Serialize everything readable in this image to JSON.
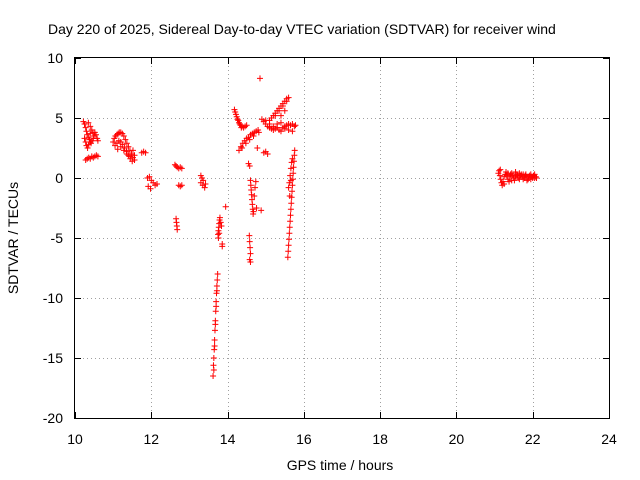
{
  "chart_data": {
    "type": "scatter",
    "title": "Day 220 of 2025, Sidereal Day-to-day VTEC variation (SDTVAR) for receiver wind",
    "xlabel": "GPS time / hours",
    "ylabel": "SDTVAR / TECUs",
    "xlim": [
      10,
      24
    ],
    "ylim": [
      -20,
      10
    ],
    "x_ticks": [
      10,
      12,
      14,
      16,
      18,
      20,
      22,
      24
    ],
    "y_ticks": [
      -20,
      -15,
      -10,
      -5,
      0,
      5,
      10
    ],
    "x_tick_labels": [
      "10",
      "12",
      "14",
      "16",
      "18",
      "20",
      "22",
      "24"
    ],
    "y_tick_labels": [
      "-20",
      "-15",
      "-10",
      "-5",
      "0",
      "5",
      "10"
    ],
    "grid": true,
    "marker": "plus",
    "series": [
      {
        "name": "SDTVAR",
        "color": "#ff0000",
        "points": [
          [
            10.22,
            4.7
          ],
          [
            10.25,
            4.5
          ],
          [
            10.28,
            4.2
          ],
          [
            10.3,
            3.9
          ],
          [
            10.32,
            3.6
          ],
          [
            10.35,
            3.4
          ],
          [
            10.38,
            3.2
          ],
          [
            10.4,
            3.0
          ],
          [
            10.42,
            2.9
          ],
          [
            10.45,
            3.1
          ],
          [
            10.48,
            3.3
          ],
          [
            10.5,
            3.5
          ],
          [
            10.52,
            3.8
          ],
          [
            10.55,
            3.6
          ],
          [
            10.58,
            3.3
          ],
          [
            10.6,
            3.1
          ],
          [
            10.25,
            3.3
          ],
          [
            10.28,
            3.0
          ],
          [
            10.3,
            2.7
          ],
          [
            10.33,
            2.5
          ],
          [
            10.36,
            2.8
          ],
          [
            10.4,
            3.7
          ],
          [
            10.44,
            4.0
          ],
          [
            10.47,
            3.8
          ],
          [
            10.35,
            4.6
          ],
          [
            10.4,
            4.3
          ],
          [
            10.28,
            1.5
          ],
          [
            10.32,
            1.6
          ],
          [
            10.36,
            1.7
          ],
          [
            10.4,
            1.6
          ],
          [
            10.44,
            1.8
          ],
          [
            10.48,
            1.7
          ],
          [
            10.52,
            1.8
          ],
          [
            10.56,
            1.9
          ],
          [
            10.6,
            1.8
          ],
          [
            11.0,
            3.0
          ],
          [
            11.03,
            3.3
          ],
          [
            11.06,
            3.5
          ],
          [
            11.1,
            3.6
          ],
          [
            11.13,
            3.7
          ],
          [
            11.16,
            3.8
          ],
          [
            11.2,
            3.8
          ],
          [
            11.24,
            3.7
          ],
          [
            11.28,
            3.5
          ],
          [
            11.32,
            3.2
          ],
          [
            11.36,
            2.9
          ],
          [
            11.4,
            2.6
          ],
          [
            11.44,
            2.3
          ],
          [
            11.48,
            2.0
          ],
          [
            11.52,
            1.7
          ],
          [
            11.56,
            1.5
          ],
          [
            11.05,
            2.7
          ],
          [
            11.1,
            2.9
          ],
          [
            11.15,
            3.1
          ],
          [
            11.2,
            3.0
          ],
          [
            11.25,
            2.8
          ],
          [
            11.3,
            2.5
          ],
          [
            11.35,
            2.2
          ],
          [
            11.4,
            1.9
          ],
          [
            11.45,
            1.6
          ],
          [
            11.5,
            1.4
          ],
          [
            11.12,
            2.4
          ],
          [
            11.2,
            2.6
          ],
          [
            11.28,
            2.3
          ],
          [
            11.36,
            2.0
          ],
          [
            11.44,
            1.8
          ],
          [
            11.52,
            2.3
          ],
          [
            11.56,
            1.9
          ],
          [
            11.75,
            2.1
          ],
          [
            11.8,
            2.2
          ],
          [
            11.85,
            2.1
          ],
          [
            11.9,
            0.0
          ],
          [
            11.95,
            0.1
          ],
          [
            12.0,
            -0.2
          ],
          [
            12.05,
            -0.4
          ],
          [
            12.1,
            -0.6
          ],
          [
            12.15,
            -0.5
          ],
          [
            11.92,
            -0.7
          ],
          [
            11.98,
            -0.9
          ],
          [
            12.62,
            1.1
          ],
          [
            12.65,
            1.0
          ],
          [
            12.68,
            0.9
          ],
          [
            12.72,
            0.8
          ],
          [
            12.76,
            0.9
          ],
          [
            12.8,
            0.8
          ],
          [
            12.72,
            -0.6
          ],
          [
            12.76,
            -0.7
          ],
          [
            12.8,
            -0.6
          ],
          [
            12.65,
            -3.4
          ],
          [
            12.66,
            -3.7
          ],
          [
            12.67,
            -4.0
          ],
          [
            12.68,
            -4.3
          ],
          [
            13.3,
            0.2
          ],
          [
            13.33,
            0.0
          ],
          [
            13.36,
            -0.2
          ],
          [
            13.3,
            -0.4
          ],
          [
            13.35,
            -0.6
          ],
          [
            13.4,
            -0.8
          ],
          [
            13.42,
            -0.5
          ],
          [
            13.62,
            -16.5
          ],
          [
            13.63,
            -15.6
          ],
          [
            13.64,
            -15.0
          ],
          [
            13.65,
            -14.3
          ],
          [
            13.66,
            -13.5
          ],
          [
            13.67,
            -12.7
          ],
          [
            13.68,
            -11.9
          ],
          [
            13.69,
            -11.1
          ],
          [
            13.7,
            -10.3
          ],
          [
            13.71,
            -9.6
          ],
          [
            13.72,
            -9.0
          ],
          [
            13.73,
            -8.5
          ],
          [
            13.74,
            -8.0
          ],
          [
            13.64,
            -16.0
          ],
          [
            13.66,
            -14.0
          ],
          [
            13.68,
            -12.2
          ],
          [
            13.7,
            -10.7
          ],
          [
            13.72,
            -9.4
          ],
          [
            13.75,
            -4.7
          ],
          [
            13.76,
            -4.4
          ],
          [
            13.77,
            -4.1
          ],
          [
            13.78,
            -3.8
          ],
          [
            13.79,
            -3.5
          ],
          [
            13.8,
            -3.3
          ],
          [
            13.76,
            -5.0
          ],
          [
            13.78,
            -4.6
          ],
          [
            13.82,
            -3.7
          ],
          [
            13.84,
            -4.0
          ],
          [
            13.86,
            -5.5
          ],
          [
            13.86,
            -5.7
          ],
          [
            13.95,
            -2.4
          ],
          [
            14.18,
            5.7
          ],
          [
            14.22,
            5.3
          ],
          [
            14.26,
            4.9
          ],
          [
            14.3,
            4.6
          ],
          [
            14.34,
            4.4
          ],
          [
            14.38,
            4.3
          ],
          [
            14.42,
            4.2
          ],
          [
            14.46,
            4.3
          ],
          [
            14.5,
            4.4
          ],
          [
            14.2,
            5.5
          ],
          [
            14.24,
            5.1
          ],
          [
            14.28,
            4.8
          ],
          [
            14.32,
            4.5
          ],
          [
            14.36,
            4.2
          ],
          [
            14.3,
            2.3
          ],
          [
            14.35,
            2.6
          ],
          [
            14.4,
            2.9
          ],
          [
            14.45,
            3.1
          ],
          [
            14.5,
            3.3
          ],
          [
            14.55,
            3.4
          ],
          [
            14.6,
            3.6
          ],
          [
            14.65,
            3.7
          ],
          [
            14.7,
            3.8
          ],
          [
            14.75,
            3.9
          ],
          [
            14.8,
            4.0
          ],
          [
            14.38,
            2.5
          ],
          [
            14.48,
            2.9
          ],
          [
            14.58,
            3.2
          ],
          [
            14.68,
            3.5
          ],
          [
            14.78,
            2.5
          ],
          [
            14.82,
            3.8
          ],
          [
            14.55,
            1.2
          ],
          [
            14.58,
            1.0
          ],
          [
            14.57,
            -4.8
          ],
          [
            14.58,
            -5.3
          ],
          [
            14.59,
            -5.8
          ],
          [
            14.6,
            -6.3
          ],
          [
            14.6,
            -7.0
          ],
          [
            14.58,
            -6.8
          ],
          [
            14.6,
            -0.2
          ],
          [
            14.61,
            -0.6
          ],
          [
            14.62,
            -1.0
          ],
          [
            14.63,
            -1.4
          ],
          [
            14.64,
            -1.8
          ],
          [
            14.65,
            -2.2
          ],
          [
            14.66,
            -2.6
          ],
          [
            14.67,
            -3.0
          ],
          [
            14.68,
            -2.8
          ],
          [
            14.7,
            -1.5
          ],
          [
            14.72,
            -0.8
          ],
          [
            14.74,
            -0.3
          ],
          [
            14.76,
            -2.5
          ],
          [
            14.85,
            8.3
          ],
          [
            14.88,
            -2.7
          ],
          [
            14.95,
            2.1
          ],
          [
            15.0,
            2.2
          ],
          [
            15.05,
            2.0
          ],
          [
            14.9,
            4.9
          ],
          [
            14.95,
            4.7
          ],
          [
            15.0,
            4.5
          ],
          [
            15.05,
            4.3
          ],
          [
            15.1,
            4.2
          ],
          [
            15.15,
            4.1
          ],
          [
            15.2,
            4.0
          ],
          [
            15.25,
            4.1
          ],
          [
            15.3,
            4.2
          ],
          [
            15.35,
            4.0
          ],
          [
            15.4,
            3.9
          ],
          [
            15.45,
            4.2
          ],
          [
            15.5,
            4.3
          ],
          [
            15.55,
            4.4
          ],
          [
            15.6,
            4.5
          ],
          [
            15.65,
            4.4
          ],
          [
            15.7,
            4.5
          ],
          [
            15.75,
            4.3
          ],
          [
            15.78,
            4.4
          ],
          [
            15.0,
            4.8
          ],
          [
            15.1,
            4.5
          ],
          [
            15.2,
            4.3
          ],
          [
            15.3,
            4.5
          ],
          [
            15.4,
            4.6
          ],
          [
            15.5,
            4.1
          ],
          [
            15.6,
            4.0
          ],
          [
            15.7,
            3.9
          ],
          [
            15.1,
            4.8
          ],
          [
            15.15,
            5.0
          ],
          [
            15.2,
            5.2
          ],
          [
            15.25,
            5.4
          ],
          [
            15.3,
            5.6
          ],
          [
            15.35,
            5.8
          ],
          [
            15.4,
            6.0
          ],
          [
            15.45,
            6.2
          ],
          [
            15.5,
            6.4
          ],
          [
            15.55,
            6.6
          ],
          [
            15.6,
            6.7
          ],
          [
            15.25,
            5.2
          ],
          [
            15.35,
            5.6
          ],
          [
            15.45,
            6.0
          ],
          [
            15.55,
            6.4
          ],
          [
            15.4,
            5.2
          ],
          [
            15.5,
            5.6
          ],
          [
            15.58,
            -6.6
          ],
          [
            15.59,
            -6.1
          ],
          [
            15.6,
            -5.6
          ],
          [
            15.61,
            -5.1
          ],
          [
            15.62,
            -4.6
          ],
          [
            15.63,
            -4.1
          ],
          [
            15.64,
            -3.6
          ],
          [
            15.65,
            -3.1
          ],
          [
            15.66,
            -2.6
          ],
          [
            15.67,
            -2.1
          ],
          [
            15.68,
            -1.6
          ],
          [
            15.69,
            -1.1
          ],
          [
            15.7,
            -0.6
          ],
          [
            15.71,
            -0.1
          ],
          [
            15.72,
            0.4
          ],
          [
            15.73,
            0.9
          ],
          [
            15.74,
            1.4
          ],
          [
            15.75,
            1.9
          ],
          [
            15.76,
            2.3
          ],
          [
            15.62,
            -0.4
          ],
          [
            15.64,
            0.2
          ],
          [
            15.66,
            0.8
          ],
          [
            15.68,
            1.3
          ],
          [
            15.7,
            1.6
          ],
          [
            15.6,
            -0.8
          ],
          [
            15.63,
            -1.5
          ],
          [
            15.66,
            -0.2
          ],
          [
            21.1,
            0.4
          ],
          [
            21.12,
            0.6
          ],
          [
            21.14,
            0.2
          ],
          [
            21.16,
            -0.1
          ],
          [
            21.18,
            -0.4
          ],
          [
            21.2,
            -0.6
          ],
          [
            21.22,
            -0.3
          ],
          [
            21.25,
            0.1
          ],
          [
            21.28,
            0.3
          ],
          [
            21.3,
            0.5
          ],
          [
            21.32,
            0.2
          ],
          [
            21.35,
            -0.1
          ],
          [
            21.38,
            -0.3
          ],
          [
            21.4,
            0.1
          ],
          [
            21.42,
            0.3
          ],
          [
            21.45,
            0.4
          ],
          [
            21.48,
            0.2
          ],
          [
            21.5,
            0.0
          ],
          [
            21.52,
            -0.2
          ],
          [
            21.55,
            0.1
          ],
          [
            21.58,
            0.3
          ],
          [
            21.6,
            0.2
          ],
          [
            21.62,
            0.0
          ],
          [
            21.65,
            -0.1
          ],
          [
            21.68,
            0.2
          ],
          [
            21.7,
            0.3
          ],
          [
            21.72,
            0.1
          ],
          [
            21.75,
            -0.1
          ],
          [
            21.78,
            0.0
          ],
          [
            21.8,
            0.2
          ],
          [
            21.82,
            0.3
          ],
          [
            21.85,
            0.1
          ],
          [
            21.88,
            -0.1
          ],
          [
            21.9,
            0.1
          ],
          [
            21.92,
            0.2
          ],
          [
            21.95,
            0.3
          ],
          [
            21.98,
            0.1
          ],
          [
            22.0,
            0.0
          ],
          [
            22.02,
            0.2
          ],
          [
            22.05,
            0.3
          ],
          [
            22.08,
            0.1
          ],
          [
            22.1,
            0.0
          ],
          [
            21.15,
            0.7
          ],
          [
            21.25,
            -0.5
          ],
          [
            21.35,
            0.4
          ],
          [
            21.45,
            -0.2
          ],
          [
            21.55,
            0.5
          ],
          [
            21.65,
            0.4
          ],
          [
            21.75,
            0.3
          ],
          [
            21.85,
            -0.2
          ],
          [
            21.95,
            -0.1
          ],
          [
            22.05,
            0.0
          ]
        ]
      }
    ]
  }
}
